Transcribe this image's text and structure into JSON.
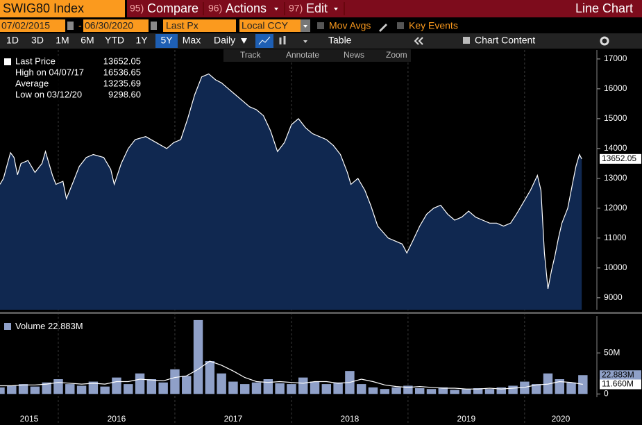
{
  "toolbar": {
    "security": "SWIG80 Index",
    "menu": [
      {
        "key": "95)",
        "label": "Compare"
      },
      {
        "key": "96)",
        "label": "Actions"
      },
      {
        "key": "97)",
        "label": "Edit"
      }
    ],
    "view": "Line Chart",
    "start_date": "07/02/2015",
    "date_sep": "-",
    "end_date": "06/30/2020",
    "field": "Last Px",
    "currency": "Local CCY",
    "toggles": [
      "Mov Avgs",
      "Key Events"
    ],
    "periods": [
      "1D",
      "3D",
      "1M",
      "6M",
      "YTD",
      "1Y",
      "5Y",
      "Max"
    ],
    "active_period": "5Y",
    "frequency": "Daily",
    "table": "Table",
    "chart_content": "Chart Content",
    "tools": [
      "Track",
      "Annotate",
      "News",
      "Zoom"
    ]
  },
  "chart_data": [
    {
      "type": "area",
      "stats": [
        {
          "label": "High on 04/07/17",
          "value": "16536.65"
        },
        {
          "label": "Average",
          "value": "13235.69"
        },
        {
          "label": "Low on 03/12/20",
          "value": "9298.60"
        }
      ],
      "xlim": [
        2015.5,
        2020.62
      ],
      "ylim": [
        8600,
        17300
      ],
      "yticks": [
        9000,
        10000,
        11000,
        12000,
        13000,
        14000,
        15000,
        16000,
        17000
      ],
      "series": [
        {
          "name": "Last Price",
          "color": "#ffffff",
          "fill": "#102850",
          "x": [
            2015.5,
            2015.53,
            2015.59,
            2015.62,
            2015.65,
            2015.68,
            2015.74,
            2015.8,
            2015.86,
            2015.89,
            2015.95,
            2015.98,
            2016.04,
            2016.07,
            2016.13,
            2016.18,
            2016.24,
            2016.3,
            2016.39,
            2016.45,
            2016.48,
            2016.54,
            2016.6,
            2016.66,
            2016.75,
            2016.84,
            2016.93,
            2016.99,
            2017.05,
            2017.11,
            2017.17,
            2017.23,
            2017.29,
            2017.35,
            2017.4,
            2017.46,
            2017.52,
            2017.58,
            2017.64,
            2017.7,
            2017.76,
            2017.82,
            2017.88,
            2017.94,
            2018.0,
            2018.06,
            2018.12,
            2018.18,
            2018.24,
            2018.3,
            2018.36,
            2018.42,
            2018.48,
            2018.51,
            2018.57,
            2018.63,
            2018.68,
            2018.74,
            2018.83,
            2018.89,
            2018.95,
            2018.99,
            2019.04,
            2019.1,
            2019.16,
            2019.22,
            2019.28,
            2019.34,
            2019.4,
            2019.46,
            2019.52,
            2019.58,
            2019.64,
            2019.7,
            2019.76,
            2019.82,
            2019.88,
            2019.93,
            2019.99,
            2020.05,
            2020.11,
            2020.14,
            2020.17,
            2020.2,
            2020.23,
            2020.26,
            2020.29,
            2020.32,
            2020.37,
            2020.41,
            2020.44,
            2020.47,
            2020.49
          ],
          "values": [
            12800,
            13000,
            13860,
            13700,
            13120,
            13500,
            13600,
            13200,
            13500,
            13900,
            13100,
            12800,
            12900,
            12320,
            12900,
            13400,
            13700,
            13800,
            13700,
            13300,
            12800,
            13500,
            14000,
            14300,
            14400,
            14200,
            14000,
            14200,
            14300,
            15000,
            15800,
            16400,
            16500,
            16300,
            16200,
            16000,
            15800,
            15600,
            15400,
            15300,
            15100,
            14600,
            13900,
            14200,
            14800,
            15000,
            14700,
            14500,
            14400,
            14300,
            14100,
            13800,
            13200,
            12800,
            13000,
            12600,
            12100,
            11400,
            11000,
            10900,
            10800,
            10500,
            10900,
            11400,
            11800,
            12000,
            12100,
            11800,
            11600,
            11700,
            11900,
            11700,
            11600,
            11500,
            11500,
            11400,
            11500,
            11800,
            12200,
            12600,
            13100,
            12600,
            10500,
            9300,
            9900,
            10400,
            11000,
            11500,
            12000,
            12800,
            13400,
            13800,
            13652.05
          ]
        }
      ]
    },
    {
      "type": "bar",
      "xlim": [
        2015.5,
        2020.62
      ],
      "ylim": [
        -4,
        95
      ],
      "yticks": [
        0,
        {
          "value": 50,
          "label": "50M"
        }
      ],
      "xticks": [
        2015,
        2016,
        2017,
        2018,
        2019,
        2020
      ],
      "x": [
        2015.5,
        2015.6,
        2015.7,
        2015.8,
        2015.9,
        2016.0,
        2016.1,
        2016.2,
        2016.3,
        2016.4,
        2016.5,
        2016.6,
        2016.7,
        2016.8,
        2016.9,
        2017.0,
        2017.1,
        2017.2,
        2017.3,
        2017.4,
        2017.5,
        2017.6,
        2017.7,
        2017.8,
        2017.9,
        2018.0,
        2018.1,
        2018.2,
        2018.3,
        2018.4,
        2018.5,
        2018.6,
        2018.7,
        2018.8,
        2018.9,
        2019.0,
        2019.1,
        2019.2,
        2019.3,
        2019.4,
        2019.5,
        2019.6,
        2019.7,
        2019.8,
        2019.9,
        2020.0,
        2020.1,
        2020.2,
        2020.3,
        2020.4,
        2020.5
      ],
      "series": [
        {
          "name": "Volume",
          "color": "#8fa0c8",
          "values": [
            8,
            10,
            12,
            9,
            14,
            18,
            12,
            10,
            15,
            9,
            20,
            12,
            25,
            18,
            14,
            30,
            22,
            90,
            40,
            25,
            15,
            12,
            14,
            18,
            13,
            12,
            20,
            15,
            12,
            14,
            28,
            12,
            8,
            6,
            8,
            10,
            7,
            6,
            8,
            5,
            6,
            7,
            6,
            8,
            10,
            15,
            12,
            25,
            18,
            14,
            22.883
          ],
          "value_labels": [
            null,
            null,
            null,
            null,
            null,
            null,
            null,
            null,
            null,
            null,
            null,
            null,
            null,
            null,
            null,
            null,
            null,
            null,
            null,
            null,
            null,
            null,
            null,
            null,
            null,
            null,
            null,
            null,
            null,
            null,
            null,
            null,
            null,
            null,
            null,
            null,
            null,
            null,
            null,
            null,
            null,
            null,
            null,
            null,
            null,
            null,
            null,
            null,
            null,
            null,
            "22.883M"
          ]
        },
        {
          "type": "line",
          "color": "#ffffff",
          "values": [
            10,
            10,
            11,
            11,
            12,
            14,
            13,
            12,
            13,
            12,
            15,
            15,
            18,
            17,
            16,
            20,
            22,
            30,
            40,
            35,
            28,
            20,
            15,
            14,
            15,
            14,
            13,
            15,
            15,
            13,
            14,
            18,
            15,
            11,
            9,
            8,
            9,
            8,
            7,
            7,
            6,
            6,
            7,
            6,
            7,
            8,
            11,
            12,
            15,
            14,
            11.66
          ],
          "value_labels": [
            null,
            null,
            null,
            null,
            null,
            null,
            null,
            null,
            null,
            null,
            null,
            null,
            null,
            null,
            null,
            null,
            null,
            null,
            null,
            null,
            null,
            null,
            null,
            null,
            null,
            null,
            null,
            null,
            null,
            null,
            null,
            null,
            null,
            null,
            null,
            null,
            null,
            null,
            null,
            null,
            null,
            null,
            null,
            null,
            null,
            null,
            null,
            null,
            null,
            null,
            "11.660M"
          ]
        }
      ]
    }
  ]
}
